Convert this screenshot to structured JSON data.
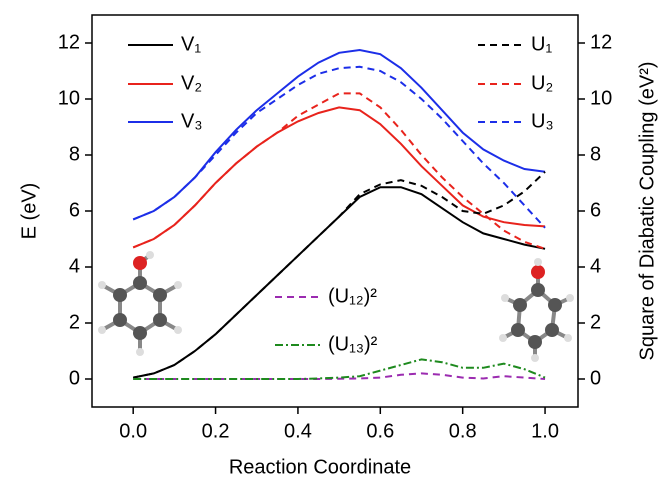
{
  "chart_data": {
    "type": "line",
    "xlabel": "Reaction Coordinate",
    "ylabel": "E (eV)",
    "y2label": "Square of Diabatic Coupling (eV²)",
    "x": [
      0,
      0.05,
      0.1,
      0.15,
      0.2,
      0.25,
      0.3,
      0.35,
      0.4,
      0.45,
      0.5,
      0.55,
      0.6,
      0.65,
      0.7,
      0.75,
      0.8,
      0.85,
      0.9,
      0.95,
      1.0
    ],
    "xlim": [
      -0.1,
      1.08
    ],
    "ylim": [
      -1,
      13
    ],
    "y2lim": [
      -1,
      13
    ],
    "xticks": [
      {
        "value": 0,
        "label": "0.0"
      },
      {
        "value": 0.2,
        "label": "0.2"
      },
      {
        "value": 0.4,
        "label": "0.4"
      },
      {
        "value": 0.6,
        "label": "0.6"
      },
      {
        "value": 0.8,
        "label": "0.8"
      },
      {
        "value": 1.0,
        "label": "1.0"
      }
    ],
    "yticks": [
      0,
      2,
      4,
      6,
      8,
      10,
      12
    ],
    "y2ticks": [
      0,
      2,
      4,
      6,
      8,
      10,
      12
    ],
    "series": [
      {
        "name": "V₁",
        "color": "#000000",
        "dash": "none",
        "values": [
          0.05,
          0.2,
          0.5,
          1.0,
          1.6,
          2.3,
          3.0,
          3.7,
          4.4,
          5.1,
          5.8,
          6.5,
          6.85,
          6.85,
          6.6,
          6.1,
          5.6,
          5.2,
          5.0,
          4.8,
          4.65
        ]
      },
      {
        "name": "V₂",
        "color": "#e8231c",
        "dash": "none",
        "values": [
          4.7,
          5.0,
          5.5,
          6.2,
          7.0,
          7.7,
          8.3,
          8.8,
          9.2,
          9.5,
          9.7,
          9.6,
          9.1,
          8.4,
          7.6,
          6.9,
          6.2,
          5.8,
          5.6,
          5.5,
          5.45
        ]
      },
      {
        "name": "V₃",
        "color": "#1c2ee8",
        "dash": "none",
        "values": [
          5.7,
          6.0,
          6.5,
          7.2,
          8.1,
          8.9,
          9.6,
          10.2,
          10.8,
          11.3,
          11.65,
          11.75,
          11.6,
          11.1,
          10.4,
          9.6,
          8.8,
          8.2,
          7.8,
          7.5,
          7.4
        ]
      },
      {
        "name": "U₁",
        "color": "#000000",
        "dash": "7,5",
        "values": [
          0.05,
          0.2,
          0.5,
          1.0,
          1.6,
          2.3,
          3.0,
          3.7,
          4.4,
          5.1,
          5.8,
          6.6,
          6.95,
          7.1,
          6.9,
          6.5,
          6.0,
          5.9,
          6.2,
          6.7,
          7.4
        ]
      },
      {
        "name": "U₂",
        "color": "#e8231c",
        "dash": "7,5",
        "values": [
          4.7,
          5.0,
          5.5,
          6.2,
          7.0,
          7.7,
          8.3,
          8.8,
          9.4,
          9.8,
          10.2,
          10.2,
          9.7,
          8.9,
          8.0,
          7.2,
          6.5,
          5.9,
          5.3,
          4.9,
          4.65
        ]
      },
      {
        "name": "U₃",
        "color": "#1c2ee8",
        "dash": "7,5",
        "values": [
          5.7,
          6.0,
          6.5,
          7.2,
          8.0,
          8.8,
          9.5,
          10.0,
          10.5,
          10.9,
          11.1,
          11.15,
          11.0,
          10.6,
          10.0,
          9.3,
          8.5,
          7.7,
          7.0,
          6.2,
          5.4
        ]
      },
      {
        "name": "(U₁₂)²",
        "color": "#9b2bb0",
        "dash": "7,5",
        "axis": "y2",
        "values": [
          0,
          0,
          0,
          0,
          0,
          0,
          0,
          0,
          0,
          0,
          0.01,
          0.02,
          0.05,
          0.15,
          0.2,
          0.15,
          0.05,
          0.02,
          0.1,
          0.05,
          0
        ]
      },
      {
        "name": "(U₁₃)²",
        "color": "#1e8a1e",
        "dash": "8,3,2,3",
        "axis": "y2",
        "values": [
          0,
          0,
          0,
          0,
          0,
          0,
          0,
          0,
          0,
          0.02,
          0.05,
          0.1,
          0.3,
          0.5,
          0.7,
          0.6,
          0.4,
          0.4,
          0.55,
          0.35,
          0.05
        ]
      }
    ]
  }
}
